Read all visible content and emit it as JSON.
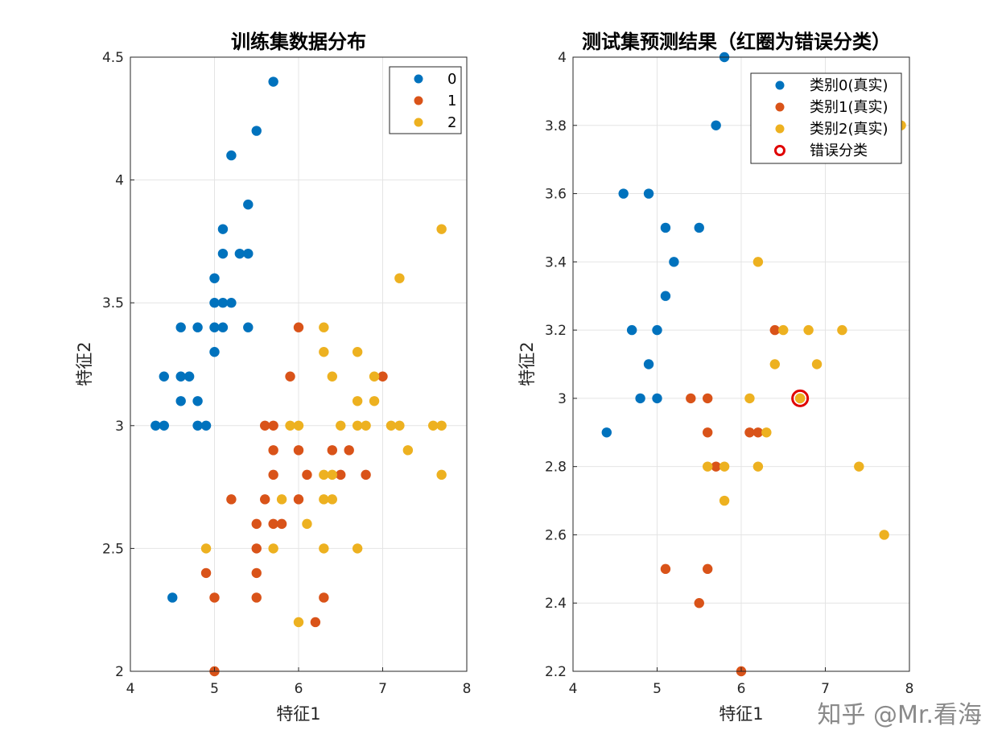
{
  "colors": {
    "c0": "#0072BD",
    "c1": "#D95319",
    "c2": "#EDB120",
    "err": "#E00000"
  },
  "watermark": "知乎 @Mr.看海",
  "chart_data": [
    {
      "type": "scatter",
      "title": "训练集数据分布",
      "xlabel": "特征1",
      "ylabel": "特征2",
      "xlim": [
        4,
        8
      ],
      "ylim": [
        2,
        4.5
      ],
      "xticks": [
        "4",
        "5",
        "6",
        "7",
        "8"
      ],
      "yticks": [
        "2",
        "2.5",
        "3",
        "3.5",
        "4",
        "4.5"
      ],
      "grid": true,
      "legend_position": "top-right",
      "series": [
        {
          "name": "0",
          "color_key": "c0",
          "points": [
            [
              5.7,
              4.4
            ],
            [
              5.5,
              4.2
            ],
            [
              5.2,
              4.1
            ],
            [
              5.4,
              3.9
            ],
            [
              5.1,
              3.8
            ],
            [
              5.1,
              3.7
            ],
            [
              5.3,
              3.7
            ],
            [
              5.4,
              3.7
            ],
            [
              5.0,
              3.6
            ],
            [
              5.0,
              3.5
            ],
            [
              5.1,
              3.5
            ],
            [
              5.2,
              3.5
            ],
            [
              4.6,
              3.4
            ],
            [
              4.8,
              3.4
            ],
            [
              5.0,
              3.4
            ],
            [
              5.1,
              3.4
            ],
            [
              5.4,
              3.4
            ],
            [
              5.0,
              3.3
            ],
            [
              4.4,
              3.2
            ],
            [
              4.6,
              3.2
            ],
            [
              4.7,
              3.2
            ],
            [
              4.6,
              3.1
            ],
            [
              4.8,
              3.1
            ],
            [
              4.3,
              3.0
            ],
            [
              4.4,
              3.0
            ],
            [
              4.8,
              3.0
            ],
            [
              4.9,
              3.0
            ],
            [
              4.5,
              2.3
            ]
          ]
        },
        {
          "name": "1",
          "color_key": "c1",
          "points": [
            [
              6.0,
              3.4
            ],
            [
              5.9,
              3.2
            ],
            [
              7.0,
              3.2
            ],
            [
              5.6,
              3.0
            ],
            [
              5.7,
              3.0
            ],
            [
              5.7,
              2.9
            ],
            [
              6.0,
              2.9
            ],
            [
              6.4,
              2.9
            ],
            [
              6.6,
              2.9
            ],
            [
              5.7,
              2.8
            ],
            [
              6.1,
              2.8
            ],
            [
              6.5,
              2.8
            ],
            [
              6.8,
              2.8
            ],
            [
              5.2,
              2.7
            ],
            [
              5.6,
              2.7
            ],
            [
              6.0,
              2.7
            ],
            [
              5.5,
              2.6
            ],
            [
              5.7,
              2.6
            ],
            [
              5.8,
              2.6
            ],
            [
              5.5,
              2.5
            ],
            [
              4.9,
              2.4
            ],
            [
              5.5,
              2.4
            ],
            [
              5.0,
              2.3
            ],
            [
              5.5,
              2.3
            ],
            [
              6.3,
              2.3
            ],
            [
              6.2,
              2.2
            ],
            [
              5.0,
              2.0
            ]
          ]
        },
        {
          "name": "2",
          "color_key": "c2",
          "points": [
            [
              7.7,
              3.8
            ],
            [
              7.2,
              3.6
            ],
            [
              6.3,
              3.4
            ],
            [
              6.3,
              3.3
            ],
            [
              6.7,
              3.3
            ],
            [
              6.4,
              3.2
            ],
            [
              6.9,
              3.2
            ],
            [
              6.7,
              3.1
            ],
            [
              6.9,
              3.1
            ],
            [
              5.9,
              3.0
            ],
            [
              6.0,
              3.0
            ],
            [
              6.5,
              3.0
            ],
            [
              6.7,
              3.0
            ],
            [
              6.8,
              3.0
            ],
            [
              7.1,
              3.0
            ],
            [
              7.2,
              3.0
            ],
            [
              7.6,
              3.0
            ],
            [
              7.7,
              3.0
            ],
            [
              7.3,
              2.9
            ],
            [
              6.3,
              2.8
            ],
            [
              6.4,
              2.8
            ],
            [
              7.7,
              2.8
            ],
            [
              5.8,
              2.7
            ],
            [
              6.3,
              2.7
            ],
            [
              6.4,
              2.7
            ],
            [
              6.1,
              2.6
            ],
            [
              4.9,
              2.5
            ],
            [
              5.7,
              2.5
            ],
            [
              6.3,
              2.5
            ],
            [
              6.7,
              2.5
            ],
            [
              6.0,
              2.2
            ]
          ]
        }
      ]
    },
    {
      "type": "scatter",
      "title": "测试集预测结果（红圈为错误分类）",
      "xlabel": "特征1",
      "ylabel": "特征2",
      "xlim": [
        4,
        8
      ],
      "ylim": [
        2.2,
        4
      ],
      "xticks": [
        "4",
        "5",
        "6",
        "7",
        "8"
      ],
      "yticks": [
        "2.2",
        "2.4",
        "2.6",
        "2.8",
        "3",
        "3.2",
        "3.4",
        "3.6",
        "3.8",
        "4"
      ],
      "grid": true,
      "legend_position": "top-right",
      "series": [
        {
          "name": "类别0(真实)",
          "color_key": "c0",
          "points": [
            [
              5.8,
              4.0
            ],
            [
              5.7,
              3.8
            ],
            [
              4.6,
              3.6
            ],
            [
              4.9,
              3.6
            ],
            [
              5.1,
              3.5
            ],
            [
              5.5,
              3.5
            ],
            [
              5.2,
              3.4
            ],
            [
              5.1,
              3.3
            ],
            [
              4.7,
              3.2
            ],
            [
              5.0,
              3.2
            ],
            [
              4.9,
              3.1
            ],
            [
              4.8,
              3.0
            ],
            [
              5.0,
              3.0
            ],
            [
              4.4,
              2.9
            ]
          ]
        },
        {
          "name": "类别1(真实)",
          "color_key": "c1",
          "points": [
            [
              6.4,
              3.2
            ],
            [
              5.4,
              3.0
            ],
            [
              5.6,
              3.0
            ],
            [
              6.7,
              3.0
            ],
            [
              5.6,
              2.9
            ],
            [
              6.1,
              2.9
            ],
            [
              6.2,
              2.9
            ],
            [
              5.7,
              2.8
            ],
            [
              5.1,
              2.5
            ],
            [
              5.6,
              2.5
            ],
            [
              5.5,
              2.4
            ],
            [
              6.0,
              2.2
            ]
          ]
        },
        {
          "name": "类别2(真实)",
          "color_key": "c2",
          "points": [
            [
              7.9,
              3.8
            ],
            [
              6.2,
              3.4
            ],
            [
              6.5,
              3.2
            ],
            [
              6.8,
              3.2
            ],
            [
              7.2,
              3.2
            ],
            [
              6.4,
              3.1
            ],
            [
              6.9,
              3.1
            ],
            [
              6.1,
              3.0
            ],
            [
              6.7,
              3.0
            ],
            [
              6.3,
              2.9
            ],
            [
              5.6,
              2.8
            ],
            [
              5.8,
              2.8
            ],
            [
              6.2,
              2.8
            ],
            [
              7.4,
              2.8
            ],
            [
              5.8,
              2.7
            ],
            [
              7.7,
              2.6
            ]
          ]
        },
        {
          "name": "错误分类",
          "color_key": "err",
          "marker": "ring",
          "points": [
            [
              6.7,
              3.0
            ]
          ]
        }
      ]
    }
  ]
}
